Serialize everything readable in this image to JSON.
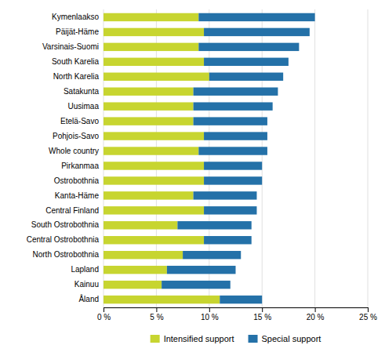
{
  "chart_data": {
    "type": "bar",
    "orientation": "horizontal",
    "stacked": true,
    "categories": [
      "Kymenlaakso",
      "Päijät-Häme",
      "Varsinais-Suomi",
      "South Karelia",
      "North Karelia",
      "Satakunta",
      "Uusimaa",
      "Etelä-Savo",
      "Pohjois-Savo",
      "Whole country",
      "Pirkanmaa",
      "Ostrobothnia",
      "Kanta-Häme",
      "Central Finland",
      "South Ostrobothnia",
      "Central Ostrobothnia",
      "North Ostrobothnia",
      "Lapland",
      "Kainuu",
      "Åland"
    ],
    "series": [
      {
        "name": "Intensified support",
        "color": "#c7d530",
        "values": [
          9.0,
          9.5,
          9.0,
          9.5,
          10.0,
          8.5,
          8.5,
          8.5,
          9.5,
          9.0,
          9.5,
          9.5,
          8.5,
          9.5,
          7.0,
          9.5,
          7.5,
          6.0,
          5.5,
          11.0
        ]
      },
      {
        "name": "Special support",
        "color": "#2471a8",
        "values": [
          11.0,
          10.0,
          9.5,
          8.0,
          7.0,
          8.0,
          7.5,
          7.0,
          6.0,
          6.5,
          5.5,
          5.5,
          6.0,
          5.0,
          7.0,
          4.5,
          5.5,
          6.5,
          6.5,
          4.0
        ]
      }
    ],
    "xlim": [
      0,
      25
    ],
    "xticks": [
      {
        "value": 0,
        "label": "0 %"
      },
      {
        "value": 5,
        "label": "5 %"
      },
      {
        "value": 10,
        "label": "10 %"
      },
      {
        "value": 15,
        "label": "15 %"
      },
      {
        "value": 20,
        "label": "20 %"
      },
      {
        "value": 25,
        "label": "25 %"
      }
    ],
    "grid": true,
    "legend": "bottom"
  }
}
